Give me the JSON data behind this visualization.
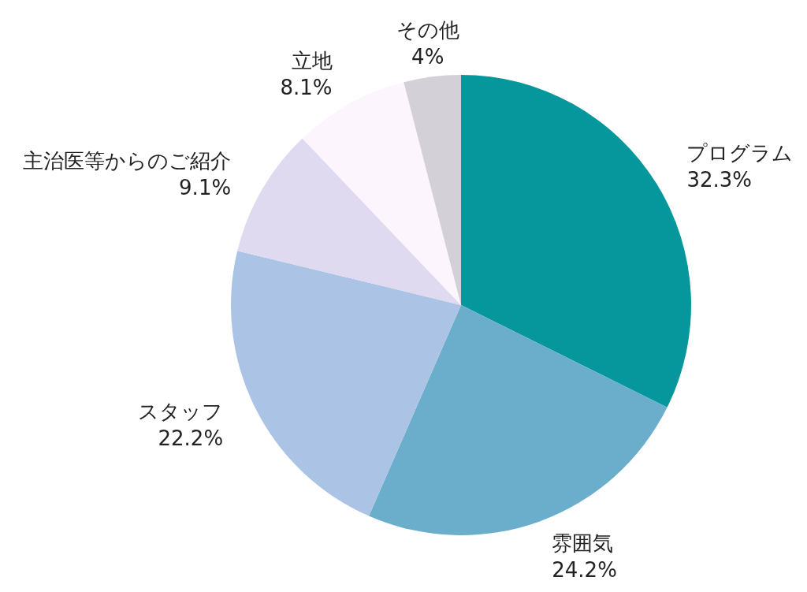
{
  "chart_data": {
    "type": "pie",
    "categories": [
      "プログラム",
      "雰囲気",
      "スタッフ",
      "主治医等からのご紹介",
      "立地",
      "その他"
    ],
    "values": [
      32.3,
      24.2,
      22.2,
      9.1,
      8.1,
      4
    ],
    "colors": [
      "#06979c",
      "#6aaecb",
      "#abc3e4",
      "#dfdaf0",
      "#fdf5fd",
      "#d3d0d8"
    ],
    "value_labels": [
      "32.3%",
      "24.2%",
      "22.2%",
      "9.1%",
      "8.1%",
      "4%"
    ]
  }
}
